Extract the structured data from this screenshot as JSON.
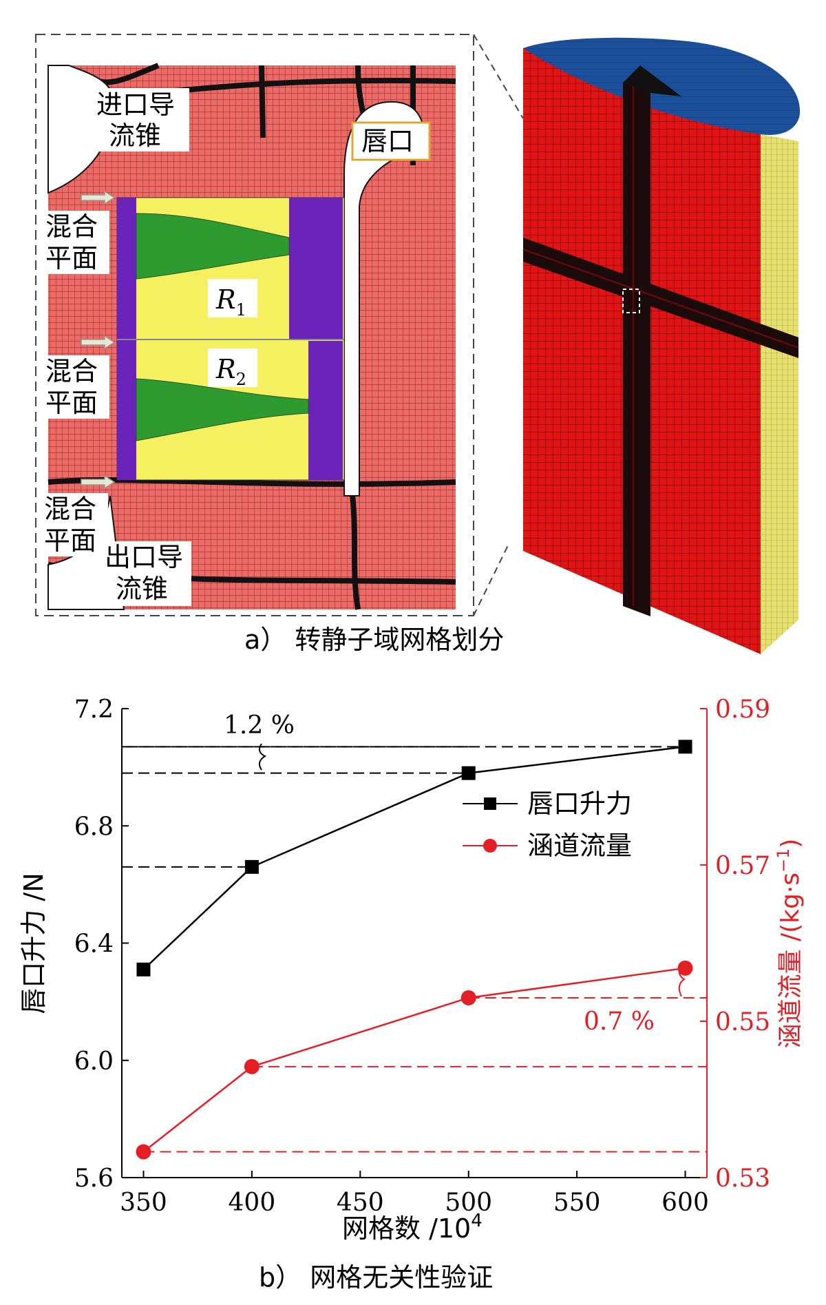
{
  "panel_a": {
    "caption": "a）  转静子域网格划分",
    "labels": {
      "inlet_cone": [
        "进口导",
        "流锥"
      ],
      "lip": "唇口",
      "mix_plane": [
        "混合",
        "平面"
      ],
      "outlet_cone": [
        "出口导",
        "流锥"
      ],
      "rotor1": "R",
      "rotor1_sub": "1",
      "rotor2": "R",
      "rotor2_sub": "2"
    },
    "colors": {
      "mesh": "#ee6a66",
      "rotor_yellow": "#f4f060",
      "blade_green": "#2f9a2f",
      "stator_purple": "#6a22b8",
      "cylinder_red": "#e01414",
      "cylinder_top": "#1c4f9a",
      "cylinder_side": "#e6e070"
    }
  },
  "panel_b": {
    "caption": "b）  网格无关性验证"
  },
  "chart_data": {
    "type": "line",
    "xlabel": "网格数 /10",
    "xlabel_sup": "4",
    "ylabel_left": "唇口升力 /N",
    "ylabel_right": "涵道流量 /(kg·s",
    "ylabel_right_sup": "−1",
    "xlim": [
      340,
      610
    ],
    "ylim_left": [
      5.6,
      7.2
    ],
    "ylim_right": [
      0.53,
      0.59
    ],
    "xticks": [
      350,
      400,
      450,
      500,
      550,
      600
    ],
    "yticks_left": [
      "7.2",
      "6.8",
      "6.4",
      "6.0",
      "5.6"
    ],
    "yticks_left_values": [
      7.2,
      6.8,
      6.4,
      6.0,
      5.6
    ],
    "yticks_right": [
      "0.59",
      "0.57",
      "0.55",
      "0.53"
    ],
    "yticks_right_values": [
      0.59,
      0.57,
      0.55,
      0.53
    ],
    "series": [
      {
        "name": "唇口升力",
        "axis": "left",
        "color": "#000000",
        "marker": "square",
        "x": [
          350,
          400,
          500,
          600
        ],
        "y": [
          6.31,
          6.66,
          6.98,
          7.07
        ]
      },
      {
        "name": "涵道流量",
        "axis": "right",
        "color": "#e31e24",
        "marker": "circle",
        "x": [
          350,
          400,
          500,
          600
        ],
        "y": [
          0.5333,
          0.5442,
          0.553,
          0.5568
        ]
      }
    ],
    "annotations": [
      {
        "text": "1.2 %",
        "color": "#000000"
      },
      {
        "text": "0.7 %",
        "color": "#e31e24"
      }
    ],
    "legend_position": "upper-right"
  }
}
